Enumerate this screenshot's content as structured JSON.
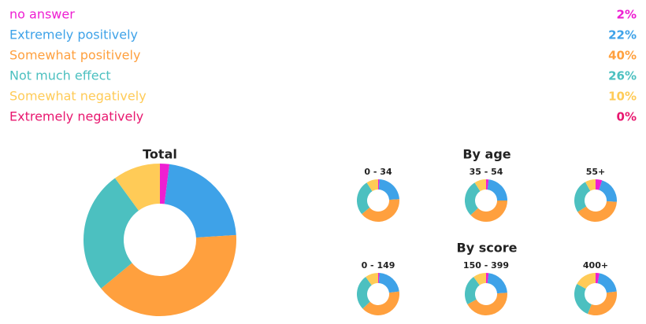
{
  "chart_data": [
    {
      "type": "donut",
      "title": "Total",
      "categories": [
        "no answer",
        "Extremely positively",
        "Somewhat positively",
        "Not much effect",
        "Somewhat negatively",
        "Extremely negatively"
      ],
      "colors": [
        "#ee1fd2",
        "#3ea2e8",
        "#ffa03e",
        "#4cc0c0",
        "#ffcb57",
        "#e8176f"
      ],
      "values": [
        2,
        22,
        40,
        26,
        10,
        0
      ],
      "value_labels": [
        "2%",
        "22%",
        "40%",
        "26%",
        "10%",
        "0%"
      ]
    },
    {
      "type": "donut",
      "group": "By age",
      "title": "0 - 34",
      "values": [
        1,
        23,
        40,
        27,
        9,
        0
      ]
    },
    {
      "type": "donut",
      "group": "By age",
      "title": "35 - 54",
      "values": [
        2,
        23,
        38,
        28,
        9,
        0
      ]
    },
    {
      "type": "donut",
      "group": "By age",
      "title": "55+",
      "values": [
        5,
        21,
        40,
        26,
        8,
        0
      ]
    },
    {
      "type": "donut",
      "group": "By score",
      "title": "0 - 149",
      "values": [
        1,
        22,
        40,
        27,
        10,
        0
      ]
    },
    {
      "type": "donut",
      "group": "By score",
      "title": "150 - 399",
      "values": [
        2,
        22,
        43,
        23,
        10,
        0
      ]
    },
    {
      "type": "donut",
      "group": "By score",
      "title": "400+",
      "values": [
        3,
        20,
        33,
        27,
        17,
        0
      ]
    }
  ]
}
